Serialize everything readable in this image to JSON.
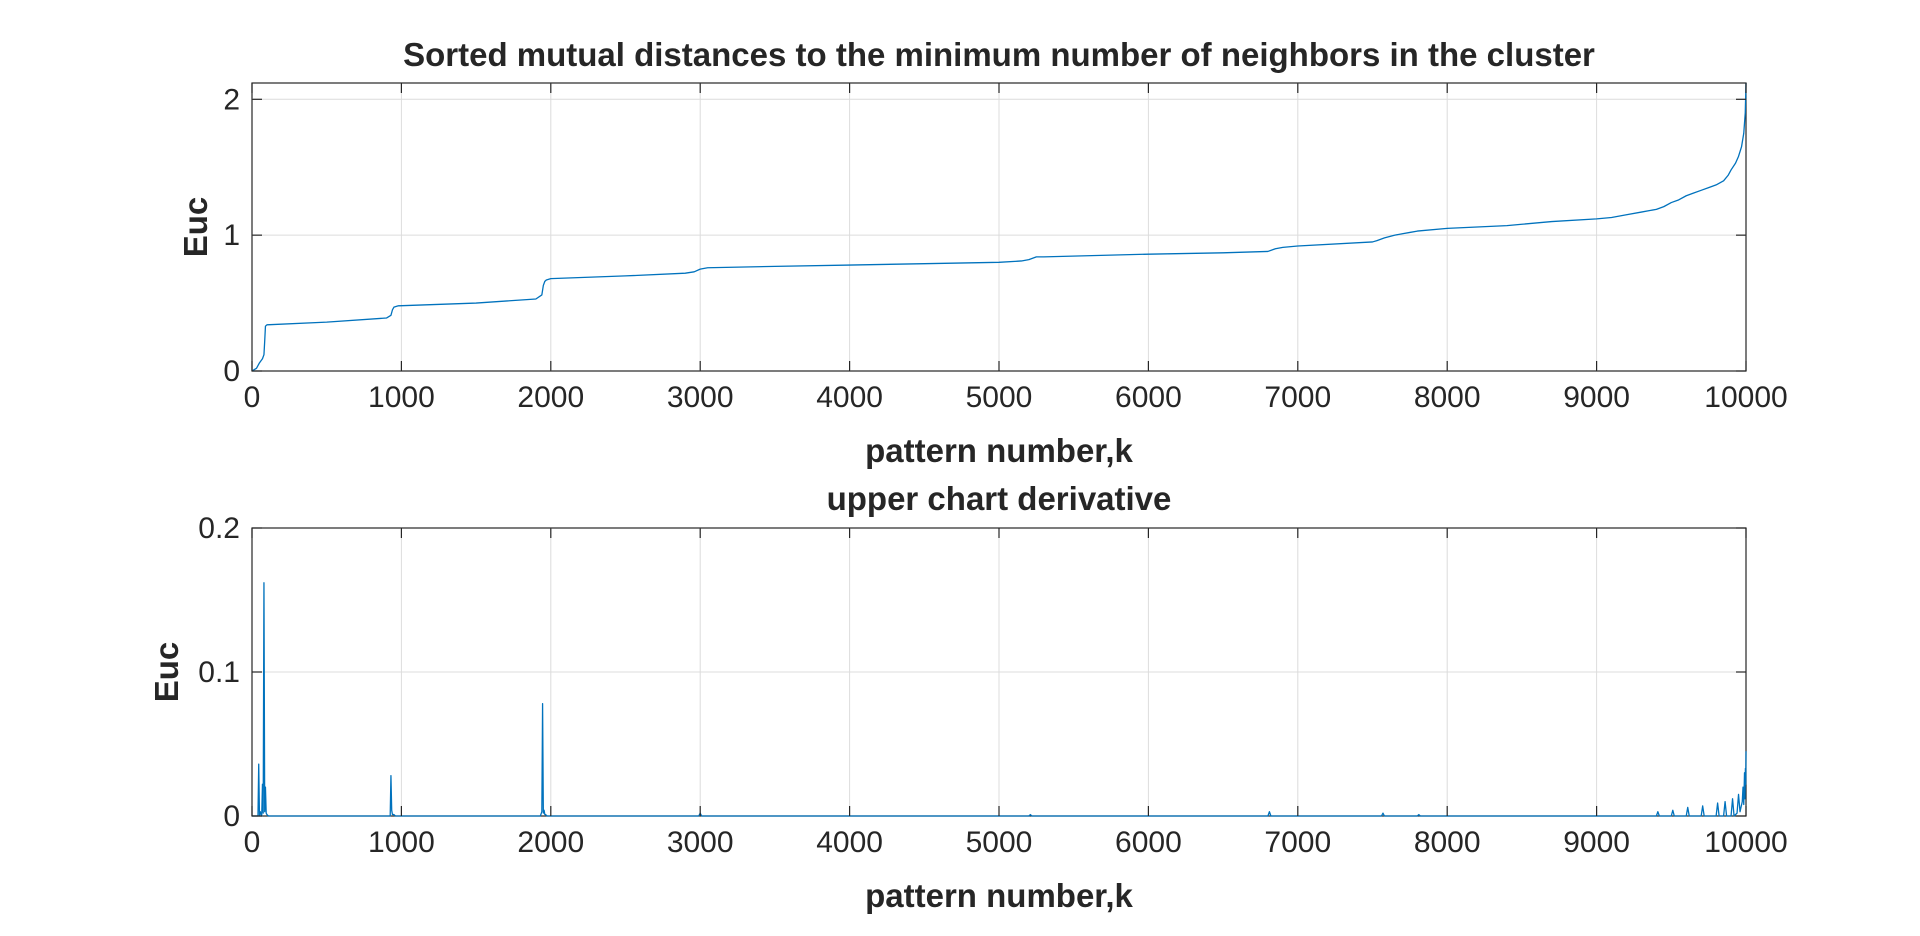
{
  "colors": {
    "series": "#0072bd",
    "axes": "#262626",
    "grid": "#dcdcdc",
    "background": "#ffffff"
  },
  "chart_data": [
    {
      "type": "line",
      "title": "Sorted mutual distances to the minimum number of neighbors in the cluster",
      "xlabel": "pattern number,k",
      "ylabel": "Euc",
      "xlim": [
        0,
        10000
      ],
      "ylim": [
        0,
        2.12
      ],
      "xticks": [
        0,
        1000,
        2000,
        3000,
        4000,
        5000,
        6000,
        7000,
        8000,
        9000,
        10000
      ],
      "xtick_labels": [
        "0",
        "1000",
        "2000",
        "3000",
        "4000",
        "5000",
        "6000",
        "7000",
        "8000",
        "9000",
        "10000"
      ],
      "yticks": [
        0,
        1,
        2
      ],
      "ytick_labels": [
        "0",
        "1",
        "2"
      ],
      "grid": true,
      "series": [
        {
          "x": [
            0,
            30,
            50,
            70,
            80,
            85,
            90,
            100,
            500,
            900,
            930,
            940,
            950,
            980,
            1500,
            1900,
            1940,
            1950,
            1960,
            1970,
            2000,
            2500,
            2900,
            2960,
            3000,
            3050,
            3500,
            4000,
            4500,
            5000,
            5150,
            5200,
            5250,
            5300,
            6000,
            6500,
            6800,
            6850,
            6900,
            7000,
            7500,
            7530,
            7580,
            7650,
            7700,
            7750,
            7800,
            8000,
            8400,
            8500,
            8700,
            9000,
            9100,
            9200,
            9300,
            9400,
            9450,
            9500,
            9550,
            9600,
            9650,
            9700,
            9750,
            9800,
            9850,
            9880,
            9900,
            9930,
            9950,
            9970,
            9985,
            9995,
            10000
          ],
          "y": [
            0.0,
            0.02,
            0.06,
            0.09,
            0.12,
            0.22,
            0.33,
            0.34,
            0.36,
            0.39,
            0.41,
            0.45,
            0.47,
            0.48,
            0.5,
            0.53,
            0.56,
            0.63,
            0.66,
            0.67,
            0.68,
            0.7,
            0.72,
            0.73,
            0.75,
            0.76,
            0.77,
            0.78,
            0.79,
            0.8,
            0.81,
            0.82,
            0.84,
            0.84,
            0.86,
            0.87,
            0.88,
            0.9,
            0.91,
            0.92,
            0.95,
            0.96,
            0.98,
            1.0,
            1.01,
            1.02,
            1.03,
            1.05,
            1.07,
            1.08,
            1.1,
            1.12,
            1.13,
            1.15,
            1.17,
            1.19,
            1.21,
            1.24,
            1.26,
            1.29,
            1.31,
            1.33,
            1.35,
            1.37,
            1.4,
            1.44,
            1.48,
            1.53,
            1.58,
            1.65,
            1.75,
            1.9,
            2.12
          ]
        }
      ]
    },
    {
      "type": "line",
      "title": "upper chart derivative",
      "xlabel": "pattern number,k",
      "ylabel": "Euc",
      "xlim": [
        0,
        10000
      ],
      "ylim": [
        0,
        0.2
      ],
      "xticks": [
        0,
        1000,
        2000,
        3000,
        4000,
        5000,
        6000,
        7000,
        8000,
        9000,
        10000
      ],
      "xtick_labels": [
        "0",
        "1000",
        "2000",
        "3000",
        "4000",
        "5000",
        "6000",
        "7000",
        "8000",
        "9000",
        "10000"
      ],
      "yticks": [
        0,
        0.1,
        0.2
      ],
      "ytick_labels": [
        "0",
        "0.1",
        "0.2"
      ],
      "grid": true,
      "series": [
        {
          "x": [
            0,
            40,
            45,
            50,
            55,
            65,
            70,
            75,
            80,
            85,
            90,
            95,
            100,
            110,
            500,
            925,
            930,
            935,
            940,
            950,
            960,
            1500,
            1930,
            1940,
            1945,
            1950,
            1955,
            1960,
            1965,
            1975,
            2500,
            2990,
            3000,
            3010,
            4000,
            5000,
            5200,
            5210,
            5220,
            6000,
            6800,
            6810,
            6820,
            7500,
            7560,
            7570,
            7580,
            7800,
            7810,
            7820,
            8500,
            9000,
            9400,
            9410,
            9420,
            9500,
            9510,
            9520,
            9600,
            9610,
            9620,
            9700,
            9710,
            9720,
            9800,
            9810,
            9820,
            9850,
            9860,
            9870,
            9900,
            9910,
            9920,
            9940,
            9950,
            9960,
            9975,
            9980,
            9985,
            9990,
            9993,
            9996,
            9998,
            10000
          ],
          "y": [
            0,
            0,
            0.036,
            0,
            0.003,
            0,
            0.022,
            0.002,
            0.162,
            0.003,
            0.02,
            0.002,
            0.001,
            0,
            0,
            0,
            0.028,
            0.004,
            0.001,
            0.001,
            0,
            0,
            0,
            0.003,
            0.078,
            0.002,
            0.004,
            0.001,
            0.001,
            0,
            0,
            0,
            0.002,
            0,
            0,
            0,
            0,
            0.001,
            0,
            0,
            0,
            0.003,
            0,
            0,
            0,
            0.002,
            0,
            0,
            0.001,
            0,
            0,
            0,
            0,
            0.003,
            0,
            0,
            0.004,
            0,
            0,
            0.006,
            0,
            0,
            0.007,
            0,
            0,
            0.009,
            0,
            0,
            0.01,
            0,
            0,
            0.012,
            0,
            0.002,
            0.015,
            0.003,
            0.01,
            0.02,
            0.008,
            0.03,
            0.012,
            0.033,
            0.022,
            0.045
          ]
        }
      ]
    }
  ]
}
